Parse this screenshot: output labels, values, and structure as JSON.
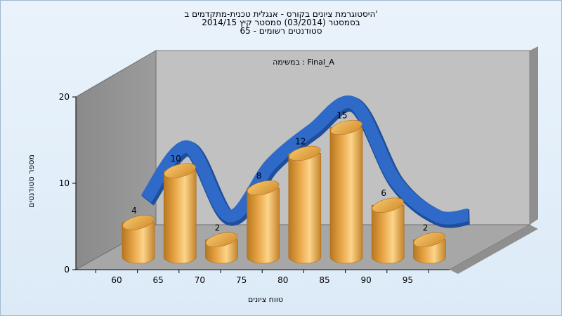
{
  "chart_title": {
    "line1": "היסטוגרמת ציונים בקורס - אנגלית טכנית-מתקדמים ב'",
    "line2": "בסמסטר  (03/2014)  סמסטר קיץ  2014/15",
    "line3": "סטודנטים רשומים - 65"
  },
  "chart_data": {
    "type": "bar",
    "annotation": "במשימה : Final_A",
    "xlabel": "טווח ציונים",
    "ylabel": "מספר סטודנטים",
    "categories": [
      "60",
      "65",
      "70",
      "75",
      "80",
      "85",
      "90",
      "95"
    ],
    "series": [
      {
        "values": [
          4,
          10,
          2,
          8,
          12,
          15,
          6,
          2
        ]
      }
    ],
    "trend_line": {
      "shown": true
    },
    "ylim": [
      0,
      20
    ],
    "yticks": [
      "0",
      "10",
      "20"
    ],
    "grid": false,
    "bar_color": "#e5a43c",
    "line_color": "#2f6ac8"
  }
}
